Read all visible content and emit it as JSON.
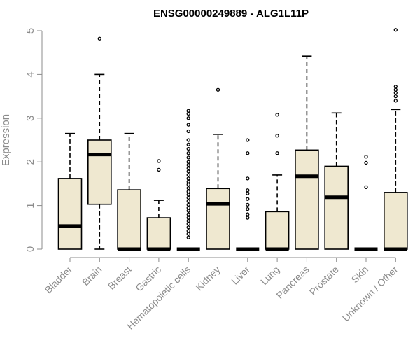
{
  "chart_data": {
    "type": "box",
    "title": "ENSG00000249889 - ALG1L11P",
    "ylabel": "Expression",
    "xlabel": "",
    "ylim": [
      0,
      5
    ],
    "yticks": [
      0,
      1,
      2,
      3,
      4,
      5
    ],
    "grid": false,
    "categories": [
      "Bladder",
      "Brain",
      "Breast",
      "Gastric",
      "Hematopoietic cells",
      "Kidney",
      "Liver",
      "Lung",
      "Pancreas",
      "Prostate",
      "Skin",
      "Unknown / Other"
    ],
    "box_fill": "#efe8d0",
    "boxes": [
      {
        "q1": 0,
        "median": 0.53,
        "q3": 1.62,
        "whisker_low": 0,
        "whisker_high": 2.65,
        "outliers": []
      },
      {
        "q1": 1.03,
        "median": 2.17,
        "q3": 2.5,
        "whisker_low": 0,
        "whisker_high": 4.0,
        "outliers": [
          4.82
        ]
      },
      {
        "q1": 0,
        "median": 0,
        "q3": 1.36,
        "whisker_low": 0,
        "whisker_high": 2.65,
        "outliers": []
      },
      {
        "q1": 0,
        "median": 0,
        "q3": 0.72,
        "whisker_low": 0,
        "whisker_high": 1.12,
        "outliers": [
          1.82,
          2.02
        ]
      },
      {
        "q1": 0,
        "median": 0,
        "q3": 0,
        "whisker_low": 0,
        "whisker_high": 0,
        "outliers": [
          0.27,
          0.35,
          0.42,
          0.5,
          0.58,
          0.65,
          0.72,
          0.8,
          0.88,
          0.95,
          1.02,
          1.1,
          1.18,
          1.25,
          1.32,
          1.4,
          1.48,
          1.55,
          1.62,
          1.7,
          1.78,
          1.85,
          1.93,
          2.0,
          2.1,
          2.2,
          2.3,
          2.4,
          2.5,
          2.7,
          2.85,
          3.0,
          3.1,
          3.17
        ]
      },
      {
        "q1": 0,
        "median": 1.04,
        "q3": 1.39,
        "whisker_low": 0,
        "whisker_high": 2.63,
        "outliers": [
          3.65
        ]
      },
      {
        "q1": 0,
        "median": 0,
        "q3": 0,
        "whisker_low": 0,
        "whisker_high": 0,
        "outliers": [
          0.72,
          0.8,
          0.92,
          1.02,
          1.15,
          1.28,
          1.35,
          1.62,
          2.2,
          2.5
        ]
      },
      {
        "q1": 0,
        "median": 0,
        "q3": 0.86,
        "whisker_low": 0,
        "whisker_high": 1.7,
        "outliers": [
          2.2,
          2.6,
          3.08
        ]
      },
      {
        "q1": 0,
        "median": 1.67,
        "q3": 2.27,
        "whisker_low": 0,
        "whisker_high": 4.42,
        "outliers": []
      },
      {
        "q1": 0,
        "median": 1.19,
        "q3": 1.9,
        "whisker_low": 0,
        "whisker_high": 3.12,
        "outliers": []
      },
      {
        "q1": 0,
        "median": 0,
        "q3": 0,
        "whisker_low": 0,
        "whisker_high": 0,
        "outliers": [
          1.42,
          1.98,
          2.12
        ]
      },
      {
        "q1": 0,
        "median": 0,
        "q3": 1.3,
        "whisker_low": 0,
        "whisker_high": 3.2,
        "outliers": [
          3.4,
          3.5,
          3.58,
          3.65,
          3.72,
          5.02
        ]
      }
    ]
  }
}
